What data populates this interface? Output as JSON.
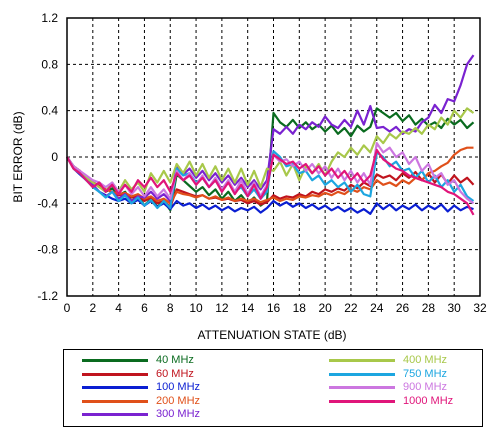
{
  "chart_data": {
    "type": "line",
    "xlabel": "ATTENUATION STATE (dB)",
    "ylabel": "BIT ERROR (dB)",
    "xlim": [
      0,
      32
    ],
    "ylim": [
      -1.2,
      1.2
    ],
    "xticks": [
      "0",
      "2",
      "4",
      "6",
      "8",
      "10",
      "12",
      "14",
      "16",
      "18",
      "20",
      "22",
      "24",
      "26",
      "28",
      "30",
      "32"
    ],
    "yticks": [
      "1.2",
      "0.8",
      "0.4",
      "0",
      "-0.4",
      "-0.8",
      "-1.2"
    ],
    "grid": true,
    "legend_position": "below",
    "x": [
      0,
      0.5,
      1,
      1.5,
      2,
      2.5,
      3,
      3.5,
      4,
      4.5,
      5,
      5.5,
      6,
      6.5,
      7,
      7.5,
      8,
      8.5,
      9,
      9.5,
      10,
      10.5,
      11,
      11.5,
      12,
      12.5,
      13,
      13.5,
      14,
      14.5,
      15,
      15.5,
      16,
      16.5,
      17,
      17.5,
      18,
      18.5,
      19,
      19.5,
      20,
      20.5,
      21,
      21.5,
      22,
      22.5,
      23,
      23.5,
      24,
      24.5,
      25,
      25.5,
      26,
      26.5,
      27,
      27.5,
      28,
      28.5,
      29,
      29.5,
      30,
      30.5,
      31,
      31.5
    ],
    "series": [
      {
        "name": "40 MHz",
        "color": "#0a6b1f",
        "values": [
          0,
          -0.08,
          -0.12,
          -0.18,
          -0.22,
          -0.25,
          -0.3,
          -0.27,
          -0.33,
          -0.3,
          -0.38,
          -0.33,
          -0.42,
          -0.36,
          -0.43,
          -0.38,
          -0.46,
          -0.15,
          -0.2,
          -0.25,
          -0.3,
          -0.26,
          -0.33,
          -0.28,
          -0.36,
          -0.3,
          -0.38,
          -0.33,
          -0.4,
          -0.35,
          -0.42,
          -0.38,
          0.38,
          0.3,
          0.26,
          0.32,
          0.25,
          0.3,
          0.24,
          0.28,
          0.22,
          0.27,
          0.2,
          0.25,
          0.18,
          0.27,
          0.22,
          0.26,
          0.42,
          0.38,
          0.34,
          0.38,
          0.31,
          0.36,
          0.28,
          0.33,
          0.27,
          0.3,
          0.25,
          0.33,
          0.28,
          0.32,
          0.25,
          0.3
        ]
      },
      {
        "name": "60 MHz",
        "color": "#c0141e",
        "values": [
          0,
          -0.08,
          -0.12,
          -0.18,
          -0.22,
          -0.25,
          -0.28,
          -0.3,
          -0.33,
          -0.32,
          -0.35,
          -0.33,
          -0.38,
          -0.35,
          -0.4,
          -0.38,
          -0.43,
          -0.28,
          -0.3,
          -0.32,
          -0.34,
          -0.33,
          -0.36,
          -0.35,
          -0.37,
          -0.36,
          -0.38,
          -0.37,
          -0.4,
          -0.38,
          -0.41,
          -0.39,
          -0.33,
          -0.36,
          -0.34,
          -0.35,
          -0.32,
          -0.34,
          -0.3,
          -0.32,
          -0.28,
          -0.3,
          -0.27,
          -0.29,
          -0.24,
          -0.27,
          -0.22,
          -0.25,
          -0.15,
          -0.18,
          -0.16,
          -0.2,
          -0.14,
          -0.18,
          -0.13,
          -0.2,
          -0.14,
          -0.22,
          -0.15,
          -0.23,
          -0.16,
          -0.22,
          -0.18,
          -0.24
        ]
      },
      {
        "name": "100 MHz",
        "color": "#0a1ed2",
        "values": [
          0,
          -0.1,
          -0.15,
          -0.2,
          -0.25,
          -0.3,
          -0.33,
          -0.36,
          -0.38,
          -0.36,
          -0.4,
          -0.37,
          -0.42,
          -0.38,
          -0.43,
          -0.4,
          -0.45,
          -0.38,
          -0.42,
          -0.4,
          -0.44,
          -0.41,
          -0.45,
          -0.42,
          -0.46,
          -0.43,
          -0.47,
          -0.44,
          -0.46,
          -0.43,
          -0.48,
          -0.44,
          -0.38,
          -0.42,
          -0.39,
          -0.43,
          -0.4,
          -0.44,
          -0.41,
          -0.45,
          -0.42,
          -0.46,
          -0.43,
          -0.47,
          -0.44,
          -0.48,
          -0.45,
          -0.49,
          -0.4,
          -0.45,
          -0.41,
          -0.46,
          -0.42,
          -0.45,
          -0.41,
          -0.46,
          -0.42,
          -0.45,
          -0.41,
          -0.47,
          -0.42,
          -0.46,
          -0.43,
          -0.45
        ]
      },
      {
        "name": "200 MHz",
        "color": "#e0501a",
        "values": [
          0,
          -0.08,
          -0.12,
          -0.18,
          -0.22,
          -0.26,
          -0.28,
          -0.3,
          -0.32,
          -0.31,
          -0.34,
          -0.32,
          -0.36,
          -0.34,
          -0.38,
          -0.36,
          -0.4,
          -0.3,
          -0.32,
          -0.33,
          -0.35,
          -0.33,
          -0.36,
          -0.34,
          -0.37,
          -0.35,
          -0.38,
          -0.36,
          -0.38,
          -0.36,
          -0.39,
          -0.37,
          -0.35,
          -0.38,
          -0.36,
          -0.37,
          -0.34,
          -0.35,
          -0.33,
          -0.34,
          -0.31,
          -0.33,
          -0.3,
          -0.32,
          -0.28,
          -0.3,
          -0.26,
          -0.28,
          -0.2,
          -0.24,
          -0.22,
          -0.25,
          -0.2,
          -0.23,
          -0.18,
          -0.2,
          -0.14,
          -0.12,
          -0.08,
          -0.05,
          0.02,
          0.06,
          0.08,
          0.08
        ]
      },
      {
        "name": "300 MHz",
        "color": "#7a22d0",
        "values": [
          0,
          -0.1,
          -0.14,
          -0.2,
          -0.24,
          -0.3,
          -0.34,
          -0.3,
          -0.36,
          -0.32,
          -0.38,
          -0.34,
          -0.35,
          -0.3,
          -0.36,
          -0.32,
          -0.38,
          -0.08,
          -0.15,
          -0.1,
          -0.18,
          -0.12,
          -0.2,
          -0.14,
          -0.22,
          -0.16,
          -0.24,
          -0.18,
          -0.26,
          -0.2,
          -0.28,
          -0.2,
          0.24,
          0.2,
          0.26,
          0.2,
          0.28,
          0.24,
          0.3,
          0.26,
          0.35,
          0.28,
          0.25,
          0.32,
          0.26,
          0.4,
          0.28,
          0.44,
          0.25,
          0.26,
          0.22,
          0.26,
          0.2,
          0.24,
          0.22,
          0.3,
          0.34,
          0.45,
          0.38,
          0.5,
          0.48,
          0.62,
          0.8,
          0.88
        ]
      },
      {
        "name": "400 MHz",
        "color": "#a8c84a",
        "values": [
          0,
          -0.1,
          -0.14,
          -0.18,
          -0.22,
          -0.26,
          -0.3,
          -0.22,
          -0.3,
          -0.2,
          -0.28,
          -0.22,
          -0.3,
          -0.14,
          -0.22,
          -0.12,
          -0.22,
          -0.06,
          -0.14,
          -0.04,
          -0.16,
          -0.06,
          -0.18,
          -0.08,
          -0.2,
          -0.1,
          -0.22,
          -0.1,
          -0.24,
          -0.12,
          -0.26,
          -0.1,
          -0.12,
          -0.04,
          -0.16,
          -0.06,
          -0.2,
          -0.08,
          -0.14,
          -0.06,
          -0.16,
          -0.04,
          0.04,
          0,
          0.08,
          0.02,
          0.1,
          0.04,
          0.18,
          0.12,
          0.2,
          0.16,
          0.22,
          0.2,
          0.25,
          0.2,
          0.28,
          0.24,
          0.34,
          0.28,
          0.4,
          0.34,
          0.42,
          0.38
        ]
      },
      {
        "name": "750 MHz",
        "color": "#1ca6e0",
        "values": [
          0,
          -0.08,
          -0.14,
          -0.2,
          -0.26,
          -0.3,
          -0.35,
          -0.3,
          -0.38,
          -0.33,
          -0.4,
          -0.35,
          -0.42,
          -0.37,
          -0.44,
          -0.38,
          -0.44,
          -0.1,
          -0.16,
          -0.14,
          -0.22,
          -0.18,
          -0.26,
          -0.2,
          -0.28,
          -0.22,
          -0.3,
          -0.26,
          -0.34,
          -0.28,
          -0.36,
          -0.3,
          0.05,
          0,
          -0.08,
          -0.06,
          -0.14,
          -0.12,
          -0.2,
          -0.16,
          -0.24,
          -0.2,
          -0.26,
          -0.22,
          -0.3,
          -0.24,
          -0.32,
          -0.34,
          0.04,
          0,
          -0.08,
          -0.04,
          -0.12,
          -0.1,
          -0.18,
          -0.12,
          -0.22,
          -0.16,
          -0.26,
          -0.2,
          -0.3,
          -0.24,
          -0.34,
          -0.38
        ]
      },
      {
        "name": "900 MHz",
        "color": "#cc77e0",
        "values": [
          0,
          -0.08,
          -0.12,
          -0.16,
          -0.2,
          -0.22,
          -0.26,
          -0.22,
          -0.3,
          -0.24,
          -0.32,
          -0.26,
          -0.34,
          -0.26,
          -0.34,
          -0.28,
          -0.36,
          -0.12,
          -0.2,
          -0.14,
          -0.24,
          -0.16,
          -0.26,
          -0.18,
          -0.28,
          -0.2,
          -0.3,
          -0.2,
          -0.32,
          -0.22,
          -0.34,
          -0.24,
          0.02,
          -0.04,
          -0.02,
          -0.08,
          -0.04,
          -0.12,
          -0.06,
          -0.14,
          -0.08,
          -0.18,
          -0.1,
          -0.2,
          -0.12,
          -0.22,
          -0.14,
          -0.24,
          0.12,
          0.04,
          0.08,
          0,
          0.04,
          -0.06,
          0,
          -0.12,
          -0.06,
          -0.18,
          -0.14,
          -0.24,
          -0.2,
          -0.3,
          -0.36,
          -0.4
        ]
      },
      {
        "name": "1000 MHz",
        "color": "#e0157a",
        "values": [
          0,
          -0.1,
          -0.14,
          -0.2,
          -0.26,
          -0.22,
          -0.3,
          -0.24,
          -0.32,
          -0.24,
          -0.3,
          -0.2,
          -0.26,
          -0.18,
          -0.26,
          -0.2,
          -0.3,
          -0.14,
          -0.2,
          -0.16,
          -0.24,
          -0.18,
          -0.26,
          -0.2,
          -0.3,
          -0.22,
          -0.32,
          -0.24,
          -0.34,
          -0.24,
          -0.36,
          -0.26,
          0.02,
          -0.02,
          -0.06,
          -0.04,
          -0.1,
          -0.06,
          -0.14,
          -0.08,
          -0.16,
          -0.1,
          -0.18,
          -0.12,
          -0.2,
          -0.14,
          -0.22,
          -0.16,
          0.06,
          -0.02,
          -0.06,
          -0.1,
          -0.12,
          -0.16,
          -0.18,
          -0.2,
          -0.22,
          -0.24,
          -0.26,
          -0.3,
          -0.32,
          -0.36,
          -0.4,
          -0.5
        ]
      }
    ]
  },
  "legend": {
    "left": [
      "40 MHz",
      "60 MHz",
      "100 MHz",
      "200 MHz",
      "300 MHz"
    ],
    "right": [
      "400 MHz",
      "750 MHz",
      "900 MHz",
      "1000 MHz"
    ]
  }
}
